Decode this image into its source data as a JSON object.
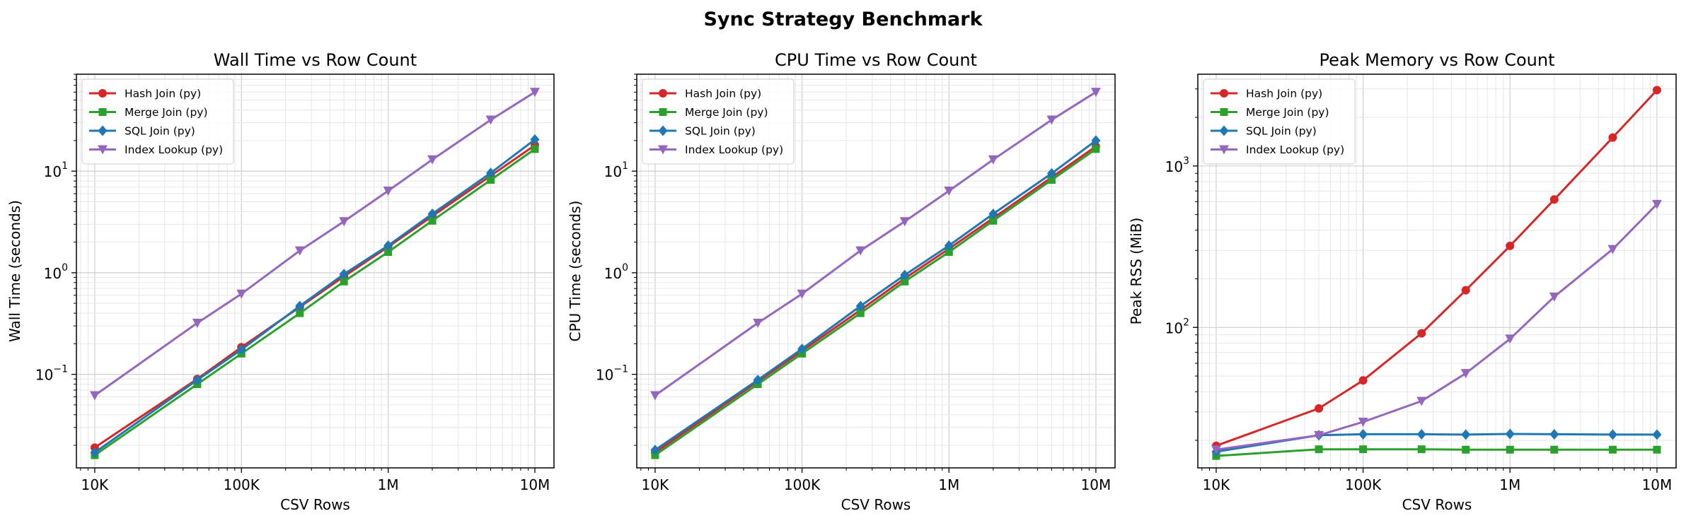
{
  "figure_title": "Sync Strategy Benchmark",
  "chart_data": [
    {
      "type": "line",
      "title": "Wall Time vs Row Count",
      "xlabel": "CSV Rows",
      "ylabel": "Wall Time (seconds)",
      "xscale": "log",
      "yscale": "log",
      "xlim": [
        7500,
        13500000
      ],
      "ylim": [
        0.012,
        90
      ],
      "xticks": [
        10000,
        100000,
        1000000,
        10000000
      ],
      "xticklabels": [
        "10K",
        "100K",
        "1M",
        "10M"
      ],
      "yticks": [
        0.1,
        1,
        10
      ],
      "yticklabels": [
        [
          "10",
          "−1"
        ],
        [
          "10",
          "0"
        ],
        [
          "10",
          "1"
        ]
      ],
      "grid": true,
      "legend_loc": "upper left",
      "x": [
        10000,
        50000,
        100000,
        250000,
        500000,
        1000000,
        2000000,
        5000000,
        10000000
      ],
      "series": [
        {
          "name": "Hash Join (py)",
          "color": "#d62728",
          "marker": "circle",
          "values": [
            0.019,
            0.09,
            0.185,
            0.46,
            0.92,
            1.8,
            3.6,
            9.0,
            18.0
          ]
        },
        {
          "name": "Merge Join (py)",
          "color": "#2ca02c",
          "marker": "square",
          "values": [
            0.016,
            0.08,
            0.16,
            0.4,
            0.82,
            1.6,
            3.25,
            8.2,
            16.5
          ]
        },
        {
          "name": "SQL Join (py)",
          "color": "#1f77b4",
          "marker": "diamond",
          "values": [
            0.017,
            0.088,
            0.175,
            0.47,
            0.97,
            1.85,
            3.8,
            9.6,
            20.5
          ]
        },
        {
          "name": "Index Lookup (py)",
          "color": "#9467bd",
          "marker": "triangle-down",
          "values": [
            0.062,
            0.32,
            0.62,
            1.65,
            3.2,
            6.4,
            13.0,
            32.0,
            60.0
          ]
        }
      ]
    },
    {
      "type": "line",
      "title": "CPU Time vs Row Count",
      "xlabel": "CSV Rows",
      "ylabel": "CPU Time (seconds)",
      "xscale": "log",
      "yscale": "log",
      "xlim": [
        7500,
        13500000
      ],
      "ylim": [
        0.012,
        90
      ],
      "xticks": [
        10000,
        100000,
        1000000,
        10000000
      ],
      "xticklabels": [
        "10K",
        "100K",
        "1M",
        "10M"
      ],
      "yticks": [
        0.1,
        1,
        10
      ],
      "yticklabels": [
        [
          "10",
          "−1"
        ],
        [
          "10",
          "0"
        ],
        [
          "10",
          "1"
        ]
      ],
      "grid": true,
      "legend_loc": "upper left",
      "x": [
        10000,
        50000,
        100000,
        250000,
        500000,
        1000000,
        2000000,
        5000000,
        10000000
      ],
      "series": [
        {
          "name": "Hash Join (py)",
          "color": "#d62728",
          "marker": "circle",
          "values": [
            0.017,
            0.085,
            0.17,
            0.43,
            0.88,
            1.72,
            3.45,
            8.7,
            17.5
          ]
        },
        {
          "name": "Merge Join (py)",
          "color": "#2ca02c",
          "marker": "square",
          "values": [
            0.016,
            0.08,
            0.16,
            0.4,
            0.82,
            1.6,
            3.25,
            8.2,
            16.5
          ]
        },
        {
          "name": "SQL Join (py)",
          "color": "#1f77b4",
          "marker": "diamond",
          "values": [
            0.018,
            0.088,
            0.178,
            0.47,
            0.95,
            1.85,
            3.8,
            9.5,
            20.0
          ]
        },
        {
          "name": "Index Lookup (py)",
          "color": "#9467bd",
          "marker": "triangle-down",
          "values": [
            0.062,
            0.32,
            0.62,
            1.65,
            3.2,
            6.4,
            13.0,
            32.0,
            60.0
          ]
        }
      ]
    },
    {
      "type": "line",
      "title": "Peak Memory vs Row Count",
      "xlabel": "CSV Rows",
      "ylabel": "Peak RSS (MiB)",
      "xscale": "log",
      "yscale": "log",
      "xlim": [
        7500,
        13500000
      ],
      "ylim": [
        13.5,
        3700
      ],
      "xticks": [
        10000,
        100000,
        1000000,
        10000000
      ],
      "xticklabels": [
        "10K",
        "100K",
        "1M",
        "10M"
      ],
      "yticks": [
        100,
        1000
      ],
      "yticklabels": [
        [
          "10",
          "2"
        ],
        [
          "10",
          "3"
        ]
      ],
      "grid": true,
      "legend_loc": "upper left",
      "x": [
        10000,
        50000,
        100000,
        250000,
        500000,
        1000000,
        2000000,
        5000000,
        10000000
      ],
      "series": [
        {
          "name": "Hash Join (py)",
          "color": "#d62728",
          "marker": "circle",
          "values": [
            18.5,
            31.5,
            47,
            92,
            170,
            320,
            620,
            1500,
            2950
          ]
        },
        {
          "name": "Merge Join (py)",
          "color": "#2ca02c",
          "marker": "square",
          "values": [
            16,
            17.6,
            17.6,
            17.6,
            17.5,
            17.5,
            17.5,
            17.5,
            17.5
          ]
        },
        {
          "name": "SQL Join (py)",
          "color": "#1f77b4",
          "marker": "diamond",
          "values": [
            17,
            21.5,
            21.8,
            21.8,
            21.7,
            21.9,
            21.8,
            21.7,
            21.7
          ]
        },
        {
          "name": "Index Lookup (py)",
          "color": "#9467bd",
          "marker": "triangle-down",
          "values": [
            17.5,
            21.5,
            26,
            35,
            52,
            85,
            155,
            305,
            580
          ]
        }
      ]
    }
  ]
}
